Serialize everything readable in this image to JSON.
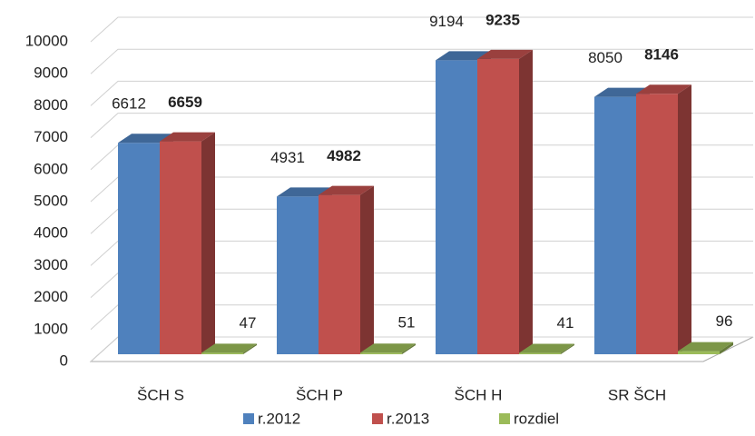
{
  "chart_data": {
    "type": "bar3d",
    "categories": [
      "ŠCH S",
      "ŠCH P",
      "ŠCH H",
      "SR ŠCH"
    ],
    "series": [
      {
        "name": "r.2012",
        "color": "#4f81bd",
        "values": [
          6612,
          4931,
          9194,
          8050
        ]
      },
      {
        "name": "r.2013",
        "color": "#c0504d",
        "values": [
          6659,
          4982,
          9235,
          8146
        ],
        "bold_labels": true
      },
      {
        "name": "rozdiel",
        "color": "#9bbb59",
        "values": [
          47,
          51,
          41,
          96
        ]
      }
    ],
    "ylim": [
      0,
      10000
    ],
    "yticks": [
      0,
      1000,
      2000,
      3000,
      4000,
      5000,
      6000,
      7000,
      8000,
      9000,
      10000
    ],
    "grid": true,
    "legend": "bottom"
  }
}
